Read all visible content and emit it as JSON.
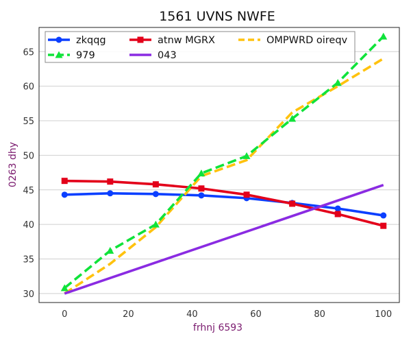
{
  "chart_data": {
    "type": "line",
    "title": "1561 UVNS NWFE",
    "xlabel": "frhnj 6593",
    "ylabel": "0263 dhy",
    "xlim": [
      -8,
      105
    ],
    "ylim": [
      28.7,
      68.5
    ],
    "xticks": [
      0,
      20,
      40,
      60,
      80,
      100
    ],
    "yticks": [
      30,
      35,
      40,
      45,
      50,
      55,
      60,
      65
    ],
    "grid": "horizontal",
    "legend_position": "top",
    "series": [
      {
        "name": "zkqqg",
        "color": "#0b3fff",
        "dash": "solid",
        "marker": "circle",
        "x": [
          0,
          14.3,
          28.6,
          42.9,
          57.1,
          71.4,
          85.7,
          100
        ],
        "y": [
          44.3,
          44.5,
          44.4,
          44.2,
          43.8,
          43.1,
          42.3,
          41.3
        ]
      },
      {
        "name": "atnw MGRX",
        "color": "#e3001a",
        "dash": "solid",
        "marker": "square",
        "x": [
          0,
          14.3,
          28.6,
          42.9,
          57.1,
          71.4,
          85.7,
          100
        ],
        "y": [
          46.3,
          46.2,
          45.8,
          45.2,
          44.3,
          43.0,
          41.5,
          39.8
        ]
      },
      {
        "name": "OMPWRD oireqv",
        "color": "#ffc20e",
        "dash": "dashed",
        "marker": "none",
        "x": [
          0,
          14.3,
          28.6,
          42.9,
          57.1,
          71.4,
          85.7,
          100
        ],
        "y": [
          30.0,
          34.3,
          39.6,
          47.0,
          49.3,
          56.2,
          60.0,
          64.0
        ]
      },
      {
        "name": "979",
        "color": "#10e33a",
        "dash": "dashed",
        "marker": "triangle",
        "x": [
          0,
          14.3,
          28.6,
          42.9,
          57.1,
          71.4,
          85.7,
          100
        ],
        "y": [
          30.8,
          36.2,
          40.0,
          47.4,
          49.9,
          55.3,
          60.5,
          67.2
        ]
      },
      {
        "name": "043",
        "color": "#8a2be2",
        "dash": "solid",
        "marker": "none",
        "x": [
          0,
          100
        ],
        "y": [
          30.0,
          45.7
        ]
      }
    ]
  }
}
